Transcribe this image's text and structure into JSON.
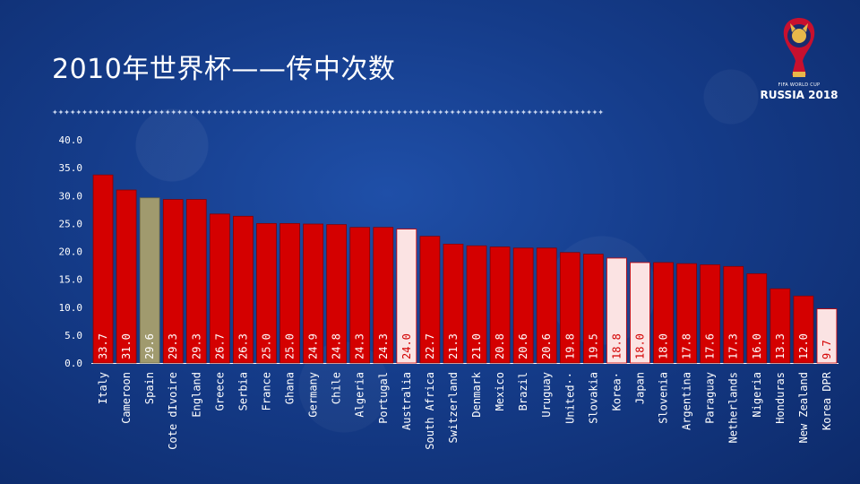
{
  "slide": {
    "title": "2010年世界杯——传中次数"
  },
  "logo": {
    "line1": "FIFA WORLD CUP",
    "line2": "RUSSIA 2018"
  },
  "colors": {
    "default_bar": "#d40000",
    "highlight_gold": "#a09a6e",
    "highlight_pink": "#fbe3e3"
  },
  "chart_data": {
    "type": "bar",
    "title": "",
    "xlabel": "",
    "ylabel": "",
    "ylim": [
      0,
      40
    ],
    "yticks": [
      "0.0",
      "5.0",
      "10.0",
      "15.0",
      "20.0",
      "25.0",
      "30.0",
      "35.0",
      "40.0"
    ],
    "categories": [
      "Italy",
      "Cameroon",
      "Spain",
      "Cote dIvoire",
      "England",
      "Greece",
      "Serbia",
      "France",
      "Ghana",
      "Germany",
      "Chile",
      "Algeria",
      "Portugal",
      "Australia",
      "South Africa",
      "Switzerland",
      "Denmark",
      "Mexico",
      "Brazil",
      "Uruguay",
      "United··",
      "Slovakia",
      "Korea·",
      "Japan",
      "Slovenia",
      "Argentina",
      "Paraguay",
      "Netherlands",
      "Nigeria",
      "Honduras",
      "New Zealand",
      "Korea DPR"
    ],
    "values": [
      33.7,
      31.0,
      29.6,
      29.3,
      29.3,
      26.7,
      26.3,
      25.0,
      25.0,
      24.9,
      24.8,
      24.3,
      24.3,
      24.0,
      22.7,
      21.3,
      21.0,
      20.8,
      20.6,
      20.6,
      19.8,
      19.5,
      18.8,
      18.0,
      18.0,
      17.8,
      17.6,
      17.3,
      16.0,
      13.3,
      12.0,
      9.7
    ],
    "value_labels": [
      "33.7",
      "31.0",
      "29.6",
      "29.3",
      "29.3",
      "26.7",
      "26.3",
      "25.0",
      "25.0",
      "24.9",
      "24.8",
      "24.3",
      "24.3",
      "24.0",
      "22.7",
      "21.3",
      "21.0",
      "20.8",
      "20.6",
      "20.6",
      "19.8",
      "19.5",
      "18.8",
      "18.0",
      "18.0",
      "17.8",
      "17.6",
      "17.3",
      "16.0",
      "13.3",
      "12.0",
      "9.7"
    ],
    "bar_colors": [
      "default",
      "default",
      "gold",
      "default",
      "default",
      "default",
      "default",
      "default",
      "default",
      "default",
      "default",
      "default",
      "default",
      "pink",
      "default",
      "default",
      "default",
      "default",
      "default",
      "default",
      "default",
      "default",
      "pink",
      "pink",
      "default",
      "default",
      "default",
      "default",
      "default",
      "default",
      "default",
      "pink"
    ],
    "grid": false,
    "legend": "none"
  }
}
